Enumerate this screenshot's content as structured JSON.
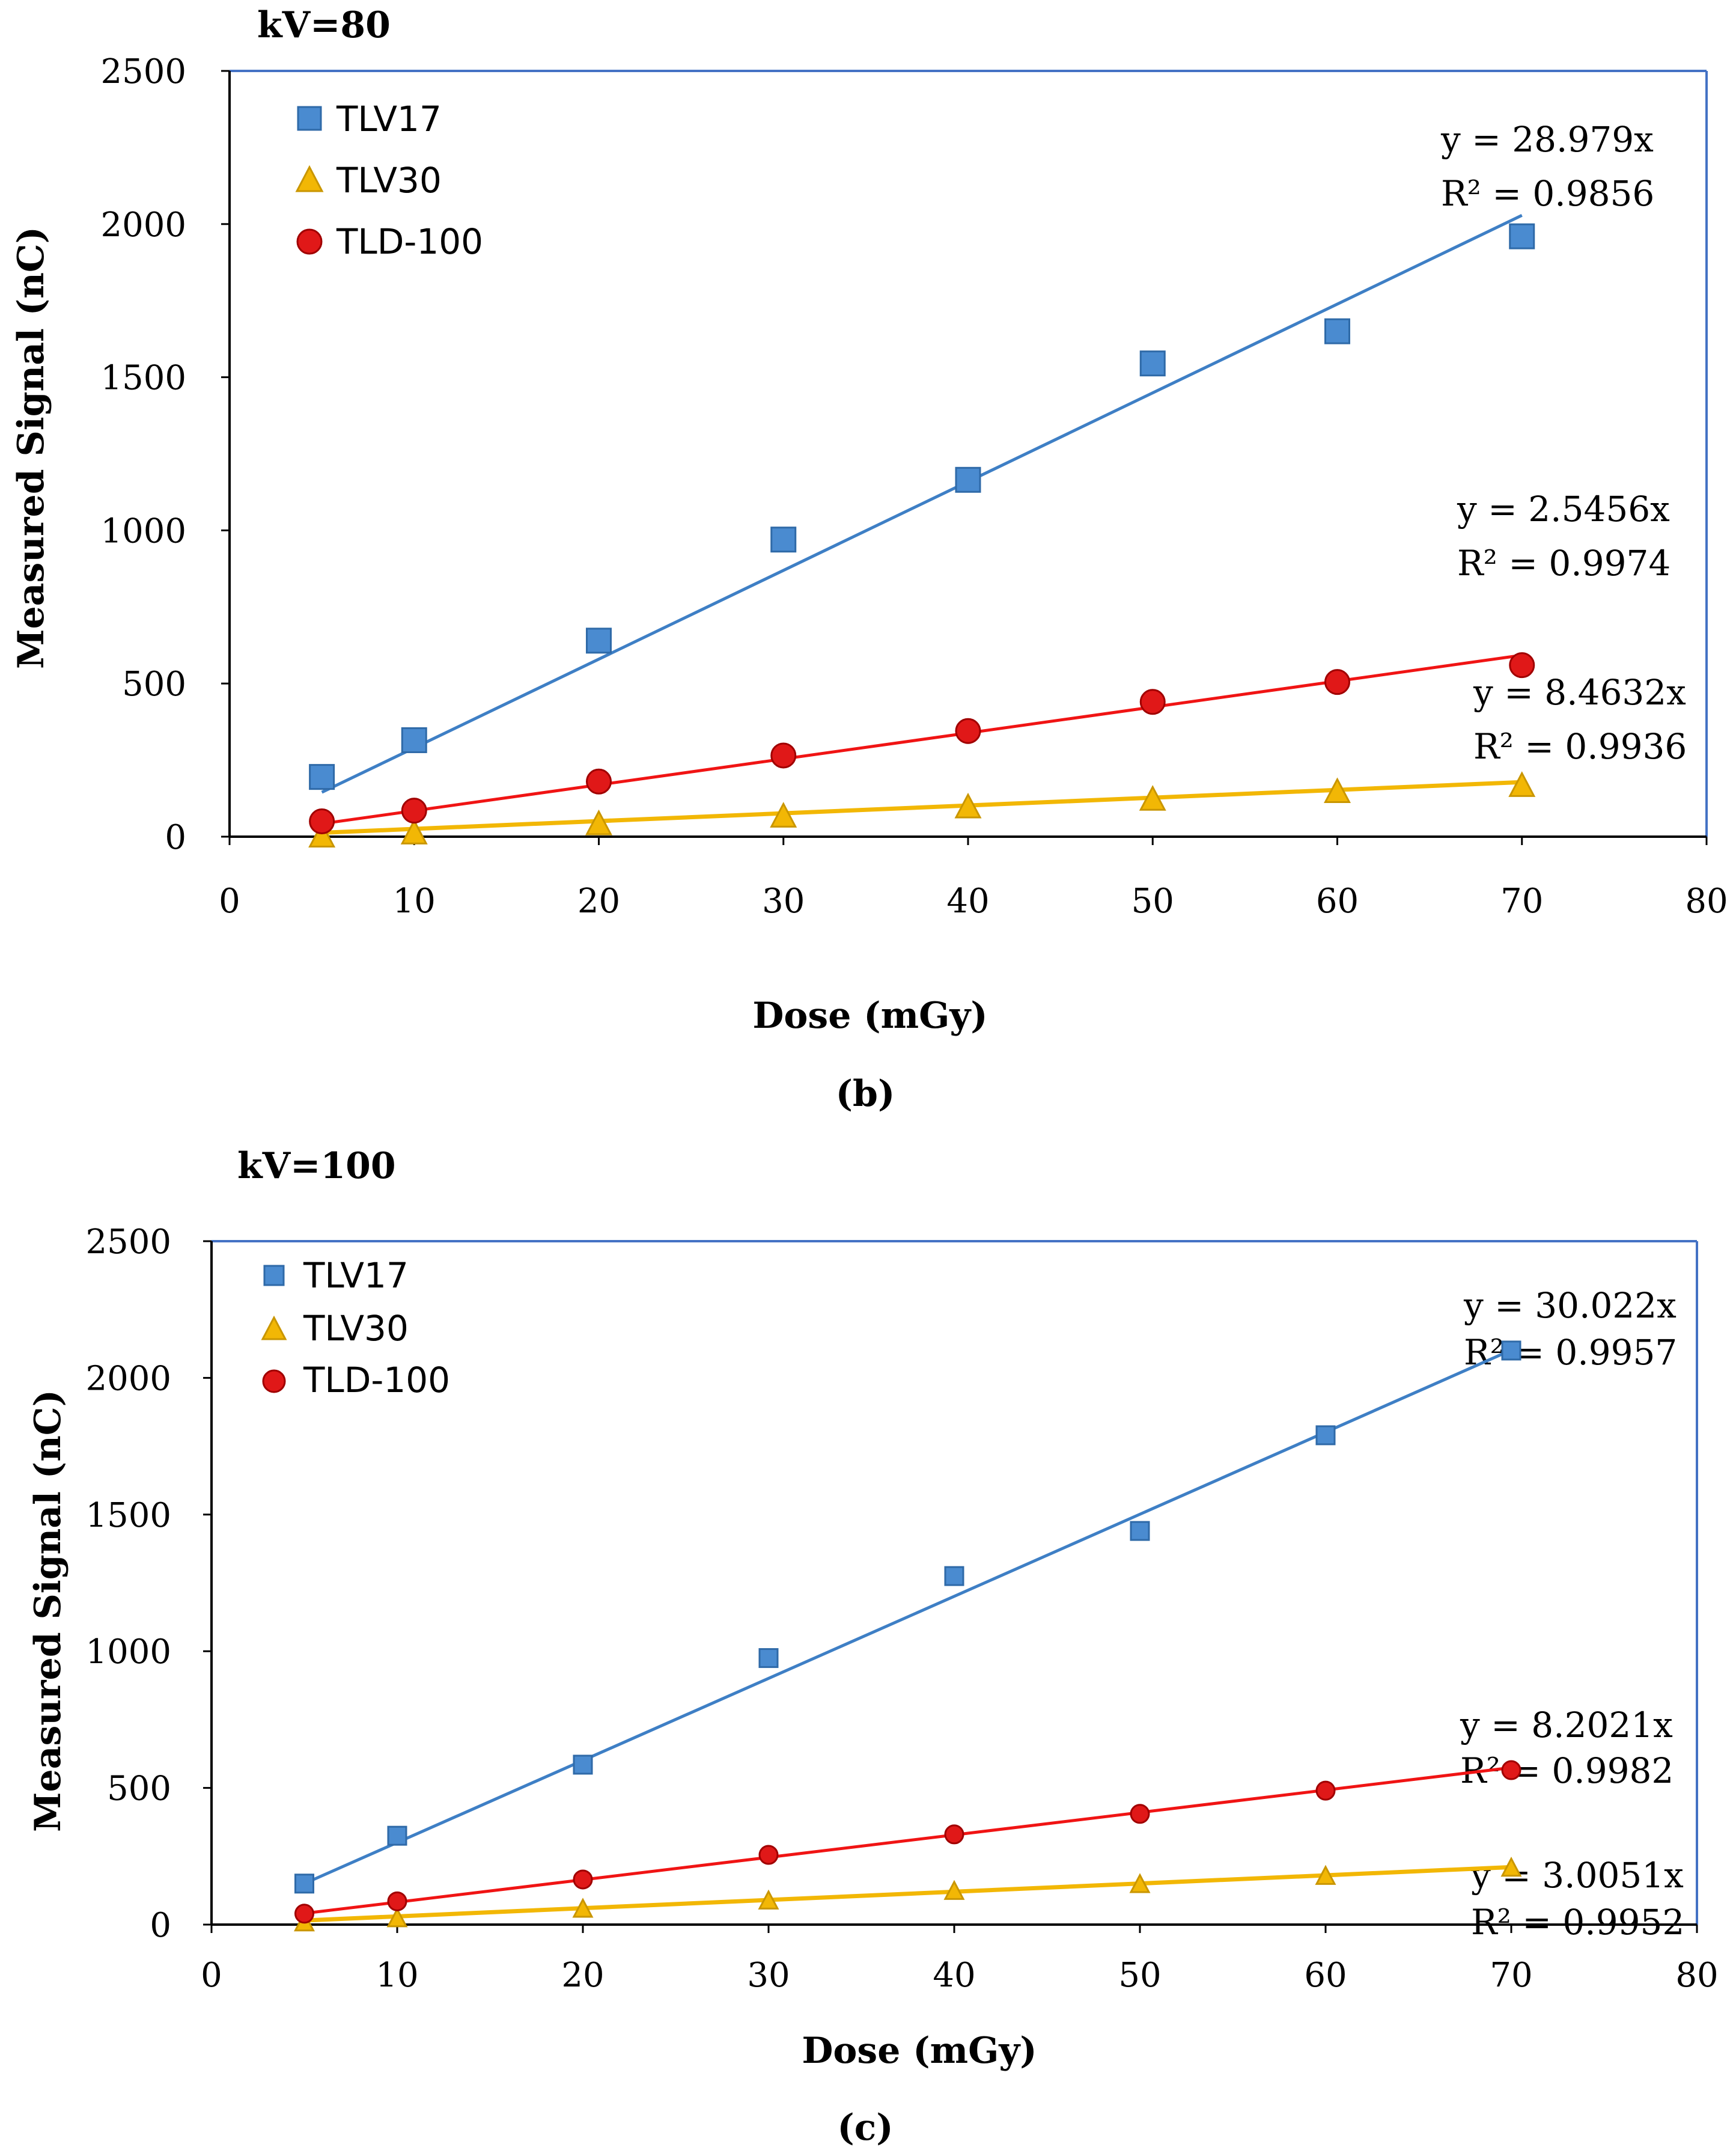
{
  "colors": {
    "frame": "#4472C4",
    "tlv17": "#4A8BD0",
    "tlv17_line": "#3E7FC5",
    "tlv30": "#F2B705",
    "tlv30_line": "#F2B705",
    "tld100": "#E01818",
    "tld100_line": "#F01414"
  },
  "chart_data": [
    {
      "type": "scatter",
      "title": "kV=80",
      "caption": "(b)",
      "xlabel": "Dose (mGy)",
      "ylabel": "Measured Signal (nC)",
      "xlim": [
        0,
        80
      ],
      "ylim": [
        0,
        2500
      ],
      "xticks": [
        0,
        10,
        20,
        30,
        40,
        50,
        60,
        70,
        80
      ],
      "yticks": [
        0,
        500,
        1000,
        1500,
        2000,
        2500
      ],
      "legend_position": "top-left",
      "x": [
        5,
        10,
        20,
        30,
        40,
        50,
        60,
        70
      ],
      "series": [
        {
          "name": "TLV17",
          "marker": "square",
          "values": [
            195,
            315,
            640,
            970,
            1165,
            1545,
            1650,
            1960
          ],
          "trend": {
            "slope": 28.979,
            "x_range": [
              5,
              70
            ],
            "equation": "y = 28.979x",
            "r2": "R² = 0.9856"
          }
        },
        {
          "name": "TLV30",
          "marker": "triangle",
          "values": [
            5,
            15,
            45,
            70,
            100,
            125,
            150,
            170
          ],
          "trend": {
            "slope": 2.5456,
            "x_range": [
              5,
              70
            ],
            "equation": "y = 2.5456x",
            "r2": "R² = 0.9974"
          }
        },
        {
          "name": "TLD-100",
          "marker": "circle",
          "values": [
            50,
            85,
            180,
            265,
            345,
            440,
            505,
            560
          ],
          "trend": {
            "slope": 8.4632,
            "x_range": [
              5,
              70
            ],
            "equation": "y = 8.4632x",
            "r2": "R² = 0.9936"
          }
        }
      ]
    },
    {
      "type": "scatter",
      "title": "kV=100",
      "caption": "(c)",
      "xlabel": "Dose (mGy)",
      "ylabel": "Measured Signal (nC)",
      "xlim": [
        0,
        80
      ],
      "ylim": [
        0,
        2500
      ],
      "xticks": [
        0,
        10,
        20,
        30,
        40,
        50,
        60,
        70,
        80
      ],
      "yticks": [
        0,
        500,
        1000,
        1500,
        2000,
        2500
      ],
      "legend_position": "top-left",
      "x": [
        5,
        10,
        20,
        30,
        40,
        50,
        60,
        70
      ],
      "series": [
        {
          "name": "TLV17",
          "marker": "square",
          "values": [
            150,
            325,
            585,
            975,
            1275,
            1440,
            1790,
            2100
          ],
          "trend": {
            "slope": 30.022,
            "x_range": [
              5,
              70
            ],
            "equation": "y = 30.022x",
            "r2": "R² = 0.9957"
          }
        },
        {
          "name": "TLV30",
          "marker": "triangle",
          "values": [
            10,
            25,
            60,
            90,
            125,
            150,
            180,
            210
          ],
          "trend": {
            "slope": 3.0051,
            "x_range": [
              5,
              70
            ],
            "equation": "y = 3.0051x",
            "r2": "R² = 0.9952"
          }
        },
        {
          "name": "TLD-100",
          "marker": "circle",
          "values": [
            40,
            85,
            165,
            255,
            330,
            405,
            490,
            565
          ],
          "trend": {
            "slope": 8.2021,
            "x_range": [
              5,
              70
            ],
            "equation": "y = 8.2021x",
            "r2": "R² = 0.9982"
          }
        }
      ]
    }
  ]
}
